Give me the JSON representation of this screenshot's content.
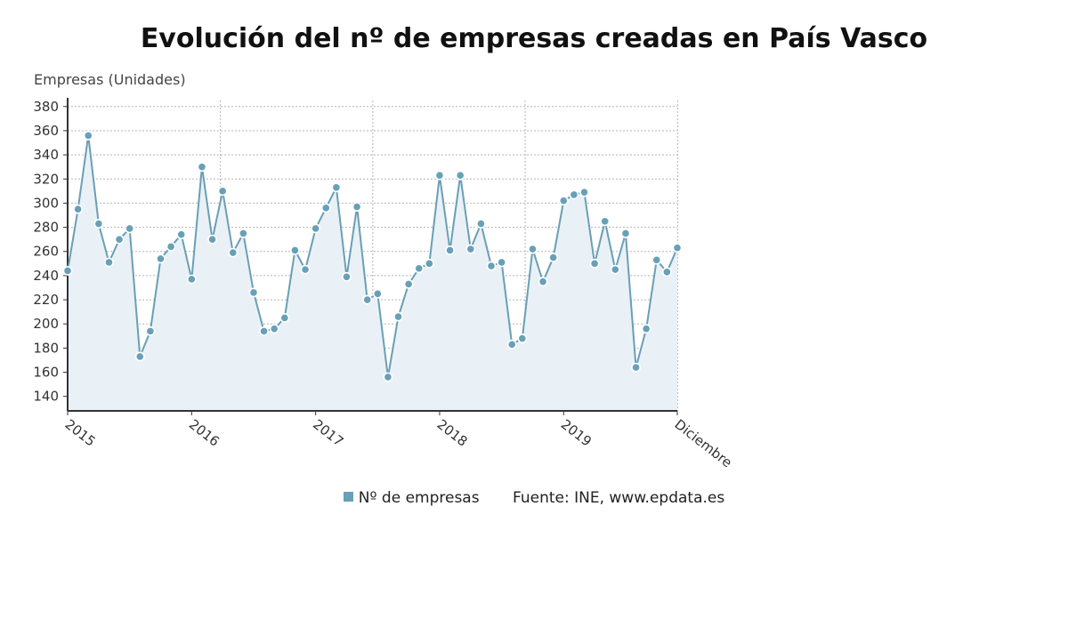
{
  "colors": {
    "series": "#6a9fb5",
    "marker": "#67a0b8",
    "fill": "#e9f1f6",
    "grid": "#b5b5b5",
    "axis": "#333333"
  },
  "chart_data": {
    "type": "line",
    "title": "Evolución del nº de empresas creadas en País Vasco",
    "ylabel": "Empresas (Unidades)",
    "xlabel": "",
    "ylim": [
      128,
      385
    ],
    "yticks": [
      140,
      160,
      180,
      200,
      220,
      240,
      260,
      280,
      300,
      320,
      340,
      360,
      380
    ],
    "xtick_labels": [
      "2015",
      "2016",
      "2017",
      "2018",
      "2019",
      "Diciembre"
    ],
    "grid": true,
    "legend_position": "bottom",
    "legend_source": "Fuente: INE, www.epdata.es",
    "series": [
      {
        "name": "Nº de empresas",
        "x": [
          "2015-01",
          "2015-02",
          "2015-03",
          "2015-04",
          "2015-05",
          "2015-06",
          "2015-07",
          "2015-08",
          "2015-09",
          "2015-10",
          "2015-11",
          "2015-12",
          "2016-01",
          "2016-02",
          "2016-03",
          "2016-04",
          "2016-05",
          "2016-06",
          "2016-07",
          "2016-08",
          "2016-09",
          "2016-10",
          "2016-11",
          "2016-12",
          "2017-01",
          "2017-02",
          "2017-03",
          "2017-04",
          "2017-05",
          "2017-06",
          "2017-07",
          "2017-08",
          "2017-09",
          "2017-10",
          "2017-11",
          "2017-12",
          "2018-01",
          "2018-02",
          "2018-03",
          "2018-04",
          "2018-05",
          "2018-06",
          "2018-07",
          "2018-08",
          "2018-09",
          "2018-10",
          "2018-11",
          "2018-12",
          "2019-01",
          "2019-02",
          "2019-03",
          "2019-04",
          "2019-05",
          "2019-06",
          "2019-07",
          "2019-08",
          "2019-09",
          "2019-10",
          "2019-11",
          "2019-12"
        ],
        "values": [
          244,
          295,
          356,
          283,
          251,
          270,
          279,
          173,
          194,
          254,
          264,
          274,
          237,
          330,
          270,
          310,
          259,
          275,
          226,
          194,
          196,
          205,
          261,
          245,
          279,
          296,
          313,
          239,
          297,
          220,
          225,
          156,
          206,
          233,
          246,
          250,
          323,
          261,
          323,
          262,
          283,
          248,
          251,
          183,
          188,
          262,
          235,
          255,
          302,
          307,
          309,
          250,
          285,
          245,
          275,
          164,
          196,
          253,
          243,
          263
        ]
      }
    ]
  }
}
